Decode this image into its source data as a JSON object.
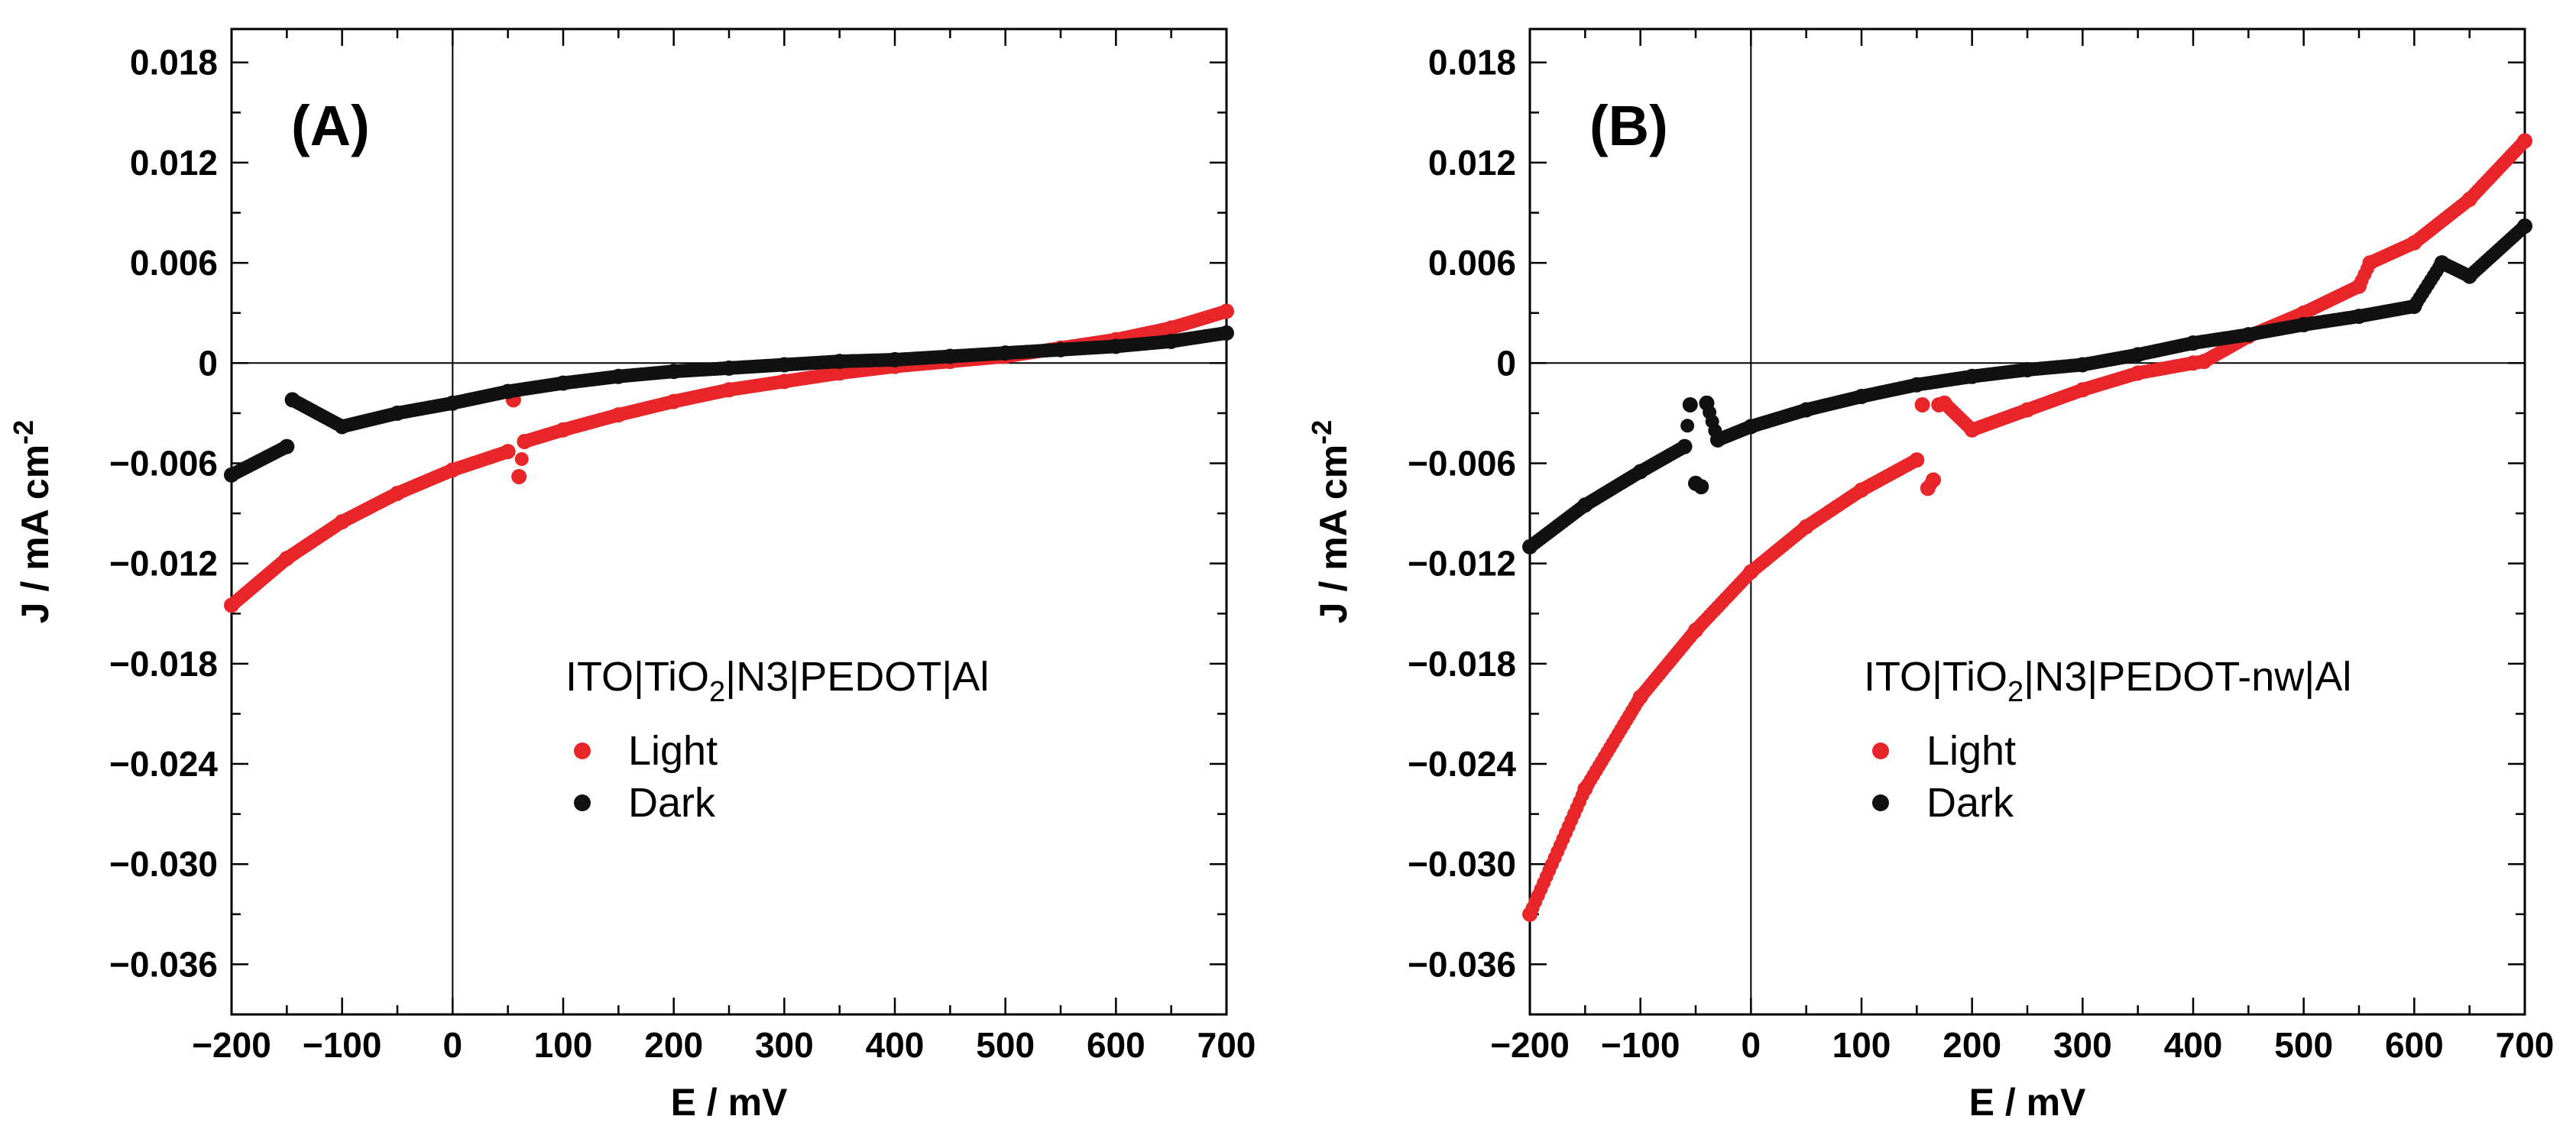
{
  "chart_data": [
    {
      "type": "scatter",
      "panel_label": "(A)",
      "xlabel": "E / mV",
      "ylabel_main": "J / mA cm",
      "ylabel_sup": "-2",
      "xlim": [
        -200,
        700
      ],
      "ylim": [
        -0.039,
        0.02
      ],
      "xticks": [
        -200,
        -100,
        0,
        100,
        200,
        300,
        400,
        500,
        600,
        700
      ],
      "xtick_labels": [
        "−200",
        "−100",
        "0",
        "100",
        "200",
        "300",
        "400",
        "500",
        "600",
        "700"
      ],
      "yticks": [
        0.018,
        0.012,
        0.006,
        0,
        -0.006,
        -0.012,
        -0.018,
        -0.024,
        -0.03,
        -0.036
      ],
      "ytick_labels": [
        "0.018",
        "0.012",
        "0.006",
        "0",
        "−0.006",
        "−0.012",
        "−0.018",
        "−0.024",
        "−0.030",
        "−0.036"
      ],
      "legend": {
        "title_parts": [
          "ITO|TiO",
          "2",
          "|N3|PEDOT|Al"
        ],
        "entries": [
          "Light",
          "Dark"
        ]
      },
      "series": [
        {
          "name": "Light",
          "color": "#e8262a",
          "x": [
            -200,
            -150,
            -100,
            -50,
            0,
            50,
            55,
            60,
            65,
            100,
            150,
            200,
            250,
            300,
            350,
            400,
            450,
            500,
            550,
            600,
            650,
            700
          ],
          "y": [
            -0.0145,
            -0.0117,
            -0.0095,
            -0.0078,
            -0.0064,
            -0.0053,
            -0.0022,
            -0.0068,
            -0.0047,
            -0.004,
            -0.0031,
            -0.0023,
            -0.0016,
            -0.0011,
            -0.0006,
            -0.0002,
            0.0001,
            0.0004,
            0.0009,
            0.0014,
            0.0021,
            0.0031
          ]
        },
        {
          "name": "Dark",
          "color": "#111111",
          "x": [
            -200,
            -150,
            -145,
            -100,
            -50,
            0,
            50,
            100,
            150,
            200,
            250,
            300,
            350,
            400,
            450,
            500,
            550,
            600,
            650,
            700
          ],
          "y": [
            -0.0067,
            -0.005,
            -0.0022,
            -0.0038,
            -0.003,
            -0.0024,
            -0.0017,
            -0.0012,
            -0.0008,
            -0.0005,
            -0.0003,
            -0.0001,
            0.0001,
            0.0002,
            0.0004,
            0.0006,
            0.0008,
            0.001,
            0.0013,
            0.0018
          ]
        }
      ]
    },
    {
      "type": "scatter",
      "panel_label": "(B)",
      "xlabel": "E / mV",
      "ylabel_main": "J / mA cm",
      "ylabel_sup": "-2",
      "xlim": [
        -200,
        700
      ],
      "ylim": [
        -0.039,
        0.02
      ],
      "xticks": [
        -200,
        -100,
        0,
        100,
        200,
        300,
        400,
        500,
        600,
        700
      ],
      "xtick_labels": [
        "−200",
        "−100",
        "0",
        "100",
        "200",
        "300",
        "400",
        "500",
        "600",
        "700"
      ],
      "yticks": [
        0.018,
        0.012,
        0.006,
        0,
        -0.006,
        -0.012,
        -0.018,
        -0.024,
        -0.03,
        -0.036
      ],
      "ytick_labels": [
        "0.018",
        "0.012",
        "0.006",
        "0",
        "−0.006",
        "−0.012",
        "−0.018",
        "−0.024",
        "−0.030",
        "−0.036"
      ],
      "legend": {
        "title_parts": [
          "ITO|TiO",
          "2",
          "|N3|PEDOT-nw|Al"
        ],
        "entries": [
          "Light",
          "Dark"
        ]
      },
      "series": [
        {
          "name": "Light",
          "color": "#e8262a",
          "x": [
            -200,
            -150,
            -100,
            -50,
            0,
            50,
            100,
            150,
            155,
            160,
            165,
            170,
            175,
            200,
            250,
            300,
            350,
            400,
            410,
            450,
            500,
            550,
            560,
            600,
            650,
            700
          ],
          "y": [
            -0.033,
            -0.0255,
            -0.02,
            -0.016,
            -0.0125,
            -0.0098,
            -0.0076,
            -0.0058,
            -0.0025,
            -0.0075,
            -0.007,
            -0.0025,
            -0.0024,
            -0.004,
            -0.0028,
            -0.0016,
            -0.0006,
            0.0,
            0.0001,
            0.0016,
            0.003,
            0.0046,
            0.006,
            0.0072,
            0.0098,
            0.0133
          ]
        },
        {
          "name": "Dark",
          "color": "#111111",
          "x": [
            -200,
            -150,
            -100,
            -60,
            -55,
            -50,
            -45,
            -40,
            -30,
            0,
            50,
            100,
            150,
            200,
            250,
            300,
            350,
            400,
            450,
            500,
            550,
            600,
            625,
            650,
            700
          ],
          "y": [
            -0.011,
            -0.0085,
            -0.0065,
            -0.005,
            -0.0025,
            -0.0072,
            -0.0074,
            -0.0024,
            -0.0046,
            -0.0038,
            -0.0028,
            -0.002,
            -0.0013,
            -0.0008,
            -0.0004,
            -0.0001,
            0.0005,
            0.0012,
            0.0017,
            0.0023,
            0.0028,
            0.0034,
            0.006,
            0.0052,
            0.0082
          ]
        }
      ]
    }
  ]
}
